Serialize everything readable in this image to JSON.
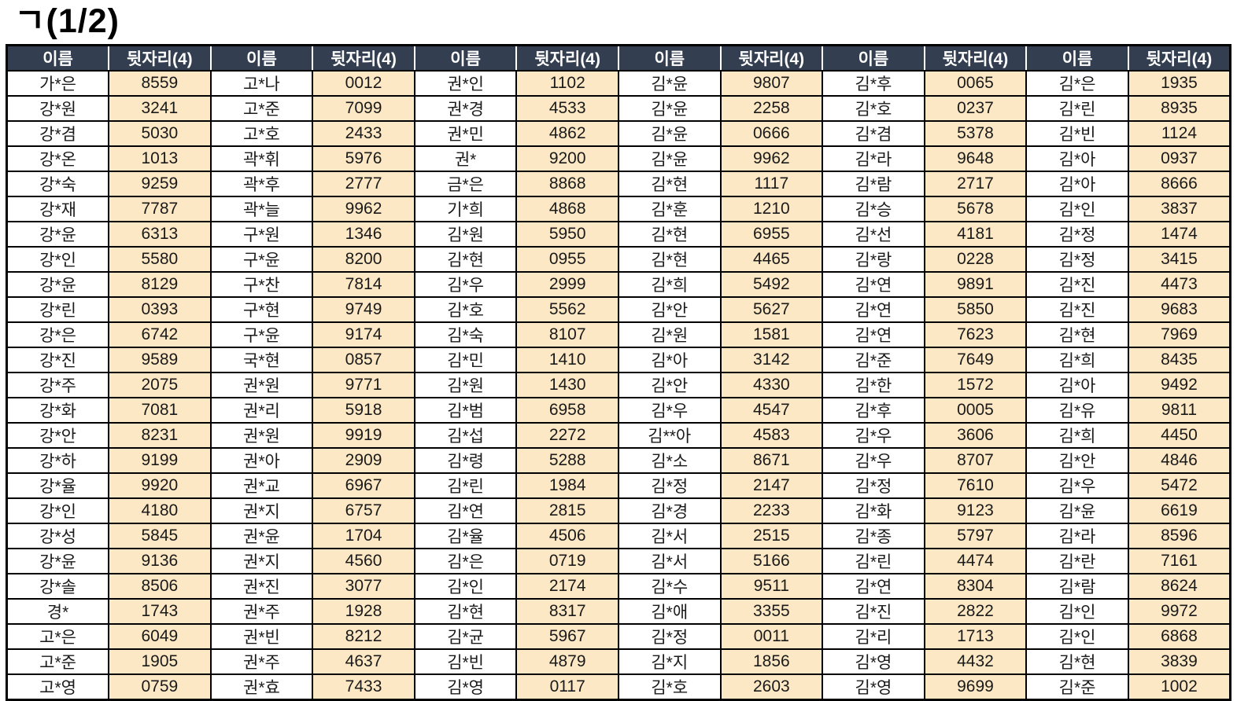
{
  "title": "ㄱ(1/2)",
  "colors": {
    "header_bg": "#333F50",
    "header_text": "#FFFFFF",
    "digits_bg": "#FCE8C4",
    "name_bg": "#FFFFFF",
    "border": "#000000",
    "title_color": "#000000"
  },
  "table": {
    "header_labels": {
      "name": "이름",
      "digits": "뒷자리(4)"
    },
    "pair_count": 6,
    "row_count": 25,
    "groups": [
      [
        {
          "name": "가*은",
          "digits": "8559"
        },
        {
          "name": "강*원",
          "digits": "3241"
        },
        {
          "name": "강*겸",
          "digits": "5030"
        },
        {
          "name": "강*온",
          "digits": "1013"
        },
        {
          "name": "강*숙",
          "digits": "9259"
        },
        {
          "name": "강*재",
          "digits": "7787"
        },
        {
          "name": "강*윤",
          "digits": "6313"
        },
        {
          "name": "강*인",
          "digits": "5580"
        },
        {
          "name": "강*윤",
          "digits": "8129"
        },
        {
          "name": "강*린",
          "digits": "0393"
        },
        {
          "name": "강*은",
          "digits": "6742"
        },
        {
          "name": "강*진",
          "digits": "9589"
        },
        {
          "name": "강*주",
          "digits": "2075"
        },
        {
          "name": "강*화",
          "digits": "7081"
        },
        {
          "name": "강*안",
          "digits": "8231"
        },
        {
          "name": "강*하",
          "digits": "9199"
        },
        {
          "name": "강*율",
          "digits": "9920"
        },
        {
          "name": "강*인",
          "digits": "4180"
        },
        {
          "name": "강*성",
          "digits": "5845"
        },
        {
          "name": "강*윤",
          "digits": "9136"
        },
        {
          "name": "강*솔",
          "digits": "8506"
        },
        {
          "name": "경*",
          "digits": "1743"
        },
        {
          "name": "고*은",
          "digits": "6049"
        },
        {
          "name": "고*준",
          "digits": "1905"
        },
        {
          "name": "고*영",
          "digits": "0759"
        }
      ],
      [
        {
          "name": "고*나",
          "digits": "0012"
        },
        {
          "name": "고*준",
          "digits": "7099"
        },
        {
          "name": "고*호",
          "digits": "2433"
        },
        {
          "name": "곽*휘",
          "digits": "5976"
        },
        {
          "name": "곽*후",
          "digits": "2777"
        },
        {
          "name": "곽*늘",
          "digits": "9962"
        },
        {
          "name": "구*원",
          "digits": "1346"
        },
        {
          "name": "구*윤",
          "digits": "8200"
        },
        {
          "name": "구*찬",
          "digits": "7814"
        },
        {
          "name": "구*현",
          "digits": "9749"
        },
        {
          "name": "구*윤",
          "digits": "9174"
        },
        {
          "name": "국*현",
          "digits": "0857"
        },
        {
          "name": "권*원",
          "digits": "9771"
        },
        {
          "name": "권*리",
          "digits": "5918"
        },
        {
          "name": "권*원",
          "digits": "9919"
        },
        {
          "name": "권*아",
          "digits": "2909"
        },
        {
          "name": "권*교",
          "digits": "6967"
        },
        {
          "name": "권*지",
          "digits": "6757"
        },
        {
          "name": "권*윤",
          "digits": "1704"
        },
        {
          "name": "권*지",
          "digits": "4560"
        },
        {
          "name": "권*진",
          "digits": "3077"
        },
        {
          "name": "권*주",
          "digits": "1928"
        },
        {
          "name": "권*빈",
          "digits": "8212"
        },
        {
          "name": "권*주",
          "digits": "4637"
        },
        {
          "name": "권*효",
          "digits": "7433"
        }
      ],
      [
        {
          "name": "권*인",
          "digits": "1102"
        },
        {
          "name": "권*경",
          "digits": "4533"
        },
        {
          "name": "권*민",
          "digits": "4862"
        },
        {
          "name": "권*",
          "digits": "9200"
        },
        {
          "name": "금*은",
          "digits": "8868"
        },
        {
          "name": "기*희",
          "digits": "4868"
        },
        {
          "name": "김*원",
          "digits": "5950"
        },
        {
          "name": "김*현",
          "digits": "0955"
        },
        {
          "name": "김*우",
          "digits": "2999"
        },
        {
          "name": "김*호",
          "digits": "5562"
        },
        {
          "name": "김*숙",
          "digits": "8107"
        },
        {
          "name": "김*민",
          "digits": "1410"
        },
        {
          "name": "김*원",
          "digits": "1430"
        },
        {
          "name": "김*범",
          "digits": "6958"
        },
        {
          "name": "김*섭",
          "digits": "2272"
        },
        {
          "name": "김*령",
          "digits": "5288"
        },
        {
          "name": "김*린",
          "digits": "1984"
        },
        {
          "name": "김*연",
          "digits": "2815"
        },
        {
          "name": "김*율",
          "digits": "4506"
        },
        {
          "name": "김*은",
          "digits": "0719"
        },
        {
          "name": "김*인",
          "digits": "2174"
        },
        {
          "name": "김*현",
          "digits": "8317"
        },
        {
          "name": "김*균",
          "digits": "5967"
        },
        {
          "name": "김*빈",
          "digits": "4879"
        },
        {
          "name": "김*영",
          "digits": "0117"
        }
      ],
      [
        {
          "name": "김*윤",
          "digits": "9807"
        },
        {
          "name": "김*윤",
          "digits": "2258"
        },
        {
          "name": "김*윤",
          "digits": "0666"
        },
        {
          "name": "김*윤",
          "digits": "9962"
        },
        {
          "name": "김*현",
          "digits": "1117"
        },
        {
          "name": "김*훈",
          "digits": "1210"
        },
        {
          "name": "김*현",
          "digits": "6955"
        },
        {
          "name": "김*현",
          "digits": "4465"
        },
        {
          "name": "김*희",
          "digits": "5492"
        },
        {
          "name": "김*안",
          "digits": "5627"
        },
        {
          "name": "김*원",
          "digits": "1581"
        },
        {
          "name": "김*아",
          "digits": "3142"
        },
        {
          "name": "김*안",
          "digits": "4330"
        },
        {
          "name": "김*우",
          "digits": "4547"
        },
        {
          "name": "김**아",
          "digits": "4583"
        },
        {
          "name": "김*소",
          "digits": "8671"
        },
        {
          "name": "김*정",
          "digits": "2147"
        },
        {
          "name": "김*경",
          "digits": "2233"
        },
        {
          "name": "김*서",
          "digits": "2515"
        },
        {
          "name": "김*서",
          "digits": "5166"
        },
        {
          "name": "김*수",
          "digits": "9511"
        },
        {
          "name": "김*애",
          "digits": "3355"
        },
        {
          "name": "김*정",
          "digits": "0011"
        },
        {
          "name": "김*지",
          "digits": "1856"
        },
        {
          "name": "김*호",
          "digits": "2603"
        }
      ],
      [
        {
          "name": "김*후",
          "digits": "0065"
        },
        {
          "name": "김*호",
          "digits": "0237"
        },
        {
          "name": "김*겸",
          "digits": "5378"
        },
        {
          "name": "김*라",
          "digits": "9648"
        },
        {
          "name": "김*람",
          "digits": "2717"
        },
        {
          "name": "김*승",
          "digits": "5678"
        },
        {
          "name": "김*선",
          "digits": "4181"
        },
        {
          "name": "김*랑",
          "digits": "0228"
        },
        {
          "name": "김*연",
          "digits": "9891"
        },
        {
          "name": "김*연",
          "digits": "5850"
        },
        {
          "name": "김*연",
          "digits": "7623"
        },
        {
          "name": "김*준",
          "digits": "7649"
        },
        {
          "name": "김*한",
          "digits": "1572"
        },
        {
          "name": "김*후",
          "digits": "0005"
        },
        {
          "name": "김*우",
          "digits": "3606"
        },
        {
          "name": "김*우",
          "digits": "8707"
        },
        {
          "name": "김*정",
          "digits": "7610"
        },
        {
          "name": "김*화",
          "digits": "9123"
        },
        {
          "name": "김*종",
          "digits": "5797"
        },
        {
          "name": "김*린",
          "digits": "4474"
        },
        {
          "name": "김*연",
          "digits": "8304"
        },
        {
          "name": "김*진",
          "digits": "2822"
        },
        {
          "name": "김*리",
          "digits": "1713"
        },
        {
          "name": "김*영",
          "digits": "4432"
        },
        {
          "name": "김*영",
          "digits": "9699"
        }
      ],
      [
        {
          "name": "김*은",
          "digits": "1935"
        },
        {
          "name": "김*린",
          "digits": "8935"
        },
        {
          "name": "김*빈",
          "digits": "1124"
        },
        {
          "name": "김*아",
          "digits": "0937"
        },
        {
          "name": "김*아",
          "digits": "8666"
        },
        {
          "name": "김*인",
          "digits": "3837"
        },
        {
          "name": "김*정",
          "digits": "1474"
        },
        {
          "name": "김*정",
          "digits": "3415"
        },
        {
          "name": "김*진",
          "digits": "4473"
        },
        {
          "name": "김*진",
          "digits": "9683"
        },
        {
          "name": "김*현",
          "digits": "7969"
        },
        {
          "name": "김*희",
          "digits": "8435"
        },
        {
          "name": "김*아",
          "digits": "9492"
        },
        {
          "name": "김*유",
          "digits": "9811"
        },
        {
          "name": "김*희",
          "digits": "4450"
        },
        {
          "name": "김*안",
          "digits": "4846"
        },
        {
          "name": "김*우",
          "digits": "5472"
        },
        {
          "name": "김*윤",
          "digits": "6619"
        },
        {
          "name": "김*라",
          "digits": "8596"
        },
        {
          "name": "김*란",
          "digits": "7161"
        },
        {
          "name": "김*람",
          "digits": "8624"
        },
        {
          "name": "김*인",
          "digits": "9972"
        },
        {
          "name": "김*인",
          "digits": "6868"
        },
        {
          "name": "김*현",
          "digits": "3839"
        },
        {
          "name": "김*준",
          "digits": "1002"
        }
      ]
    ]
  }
}
